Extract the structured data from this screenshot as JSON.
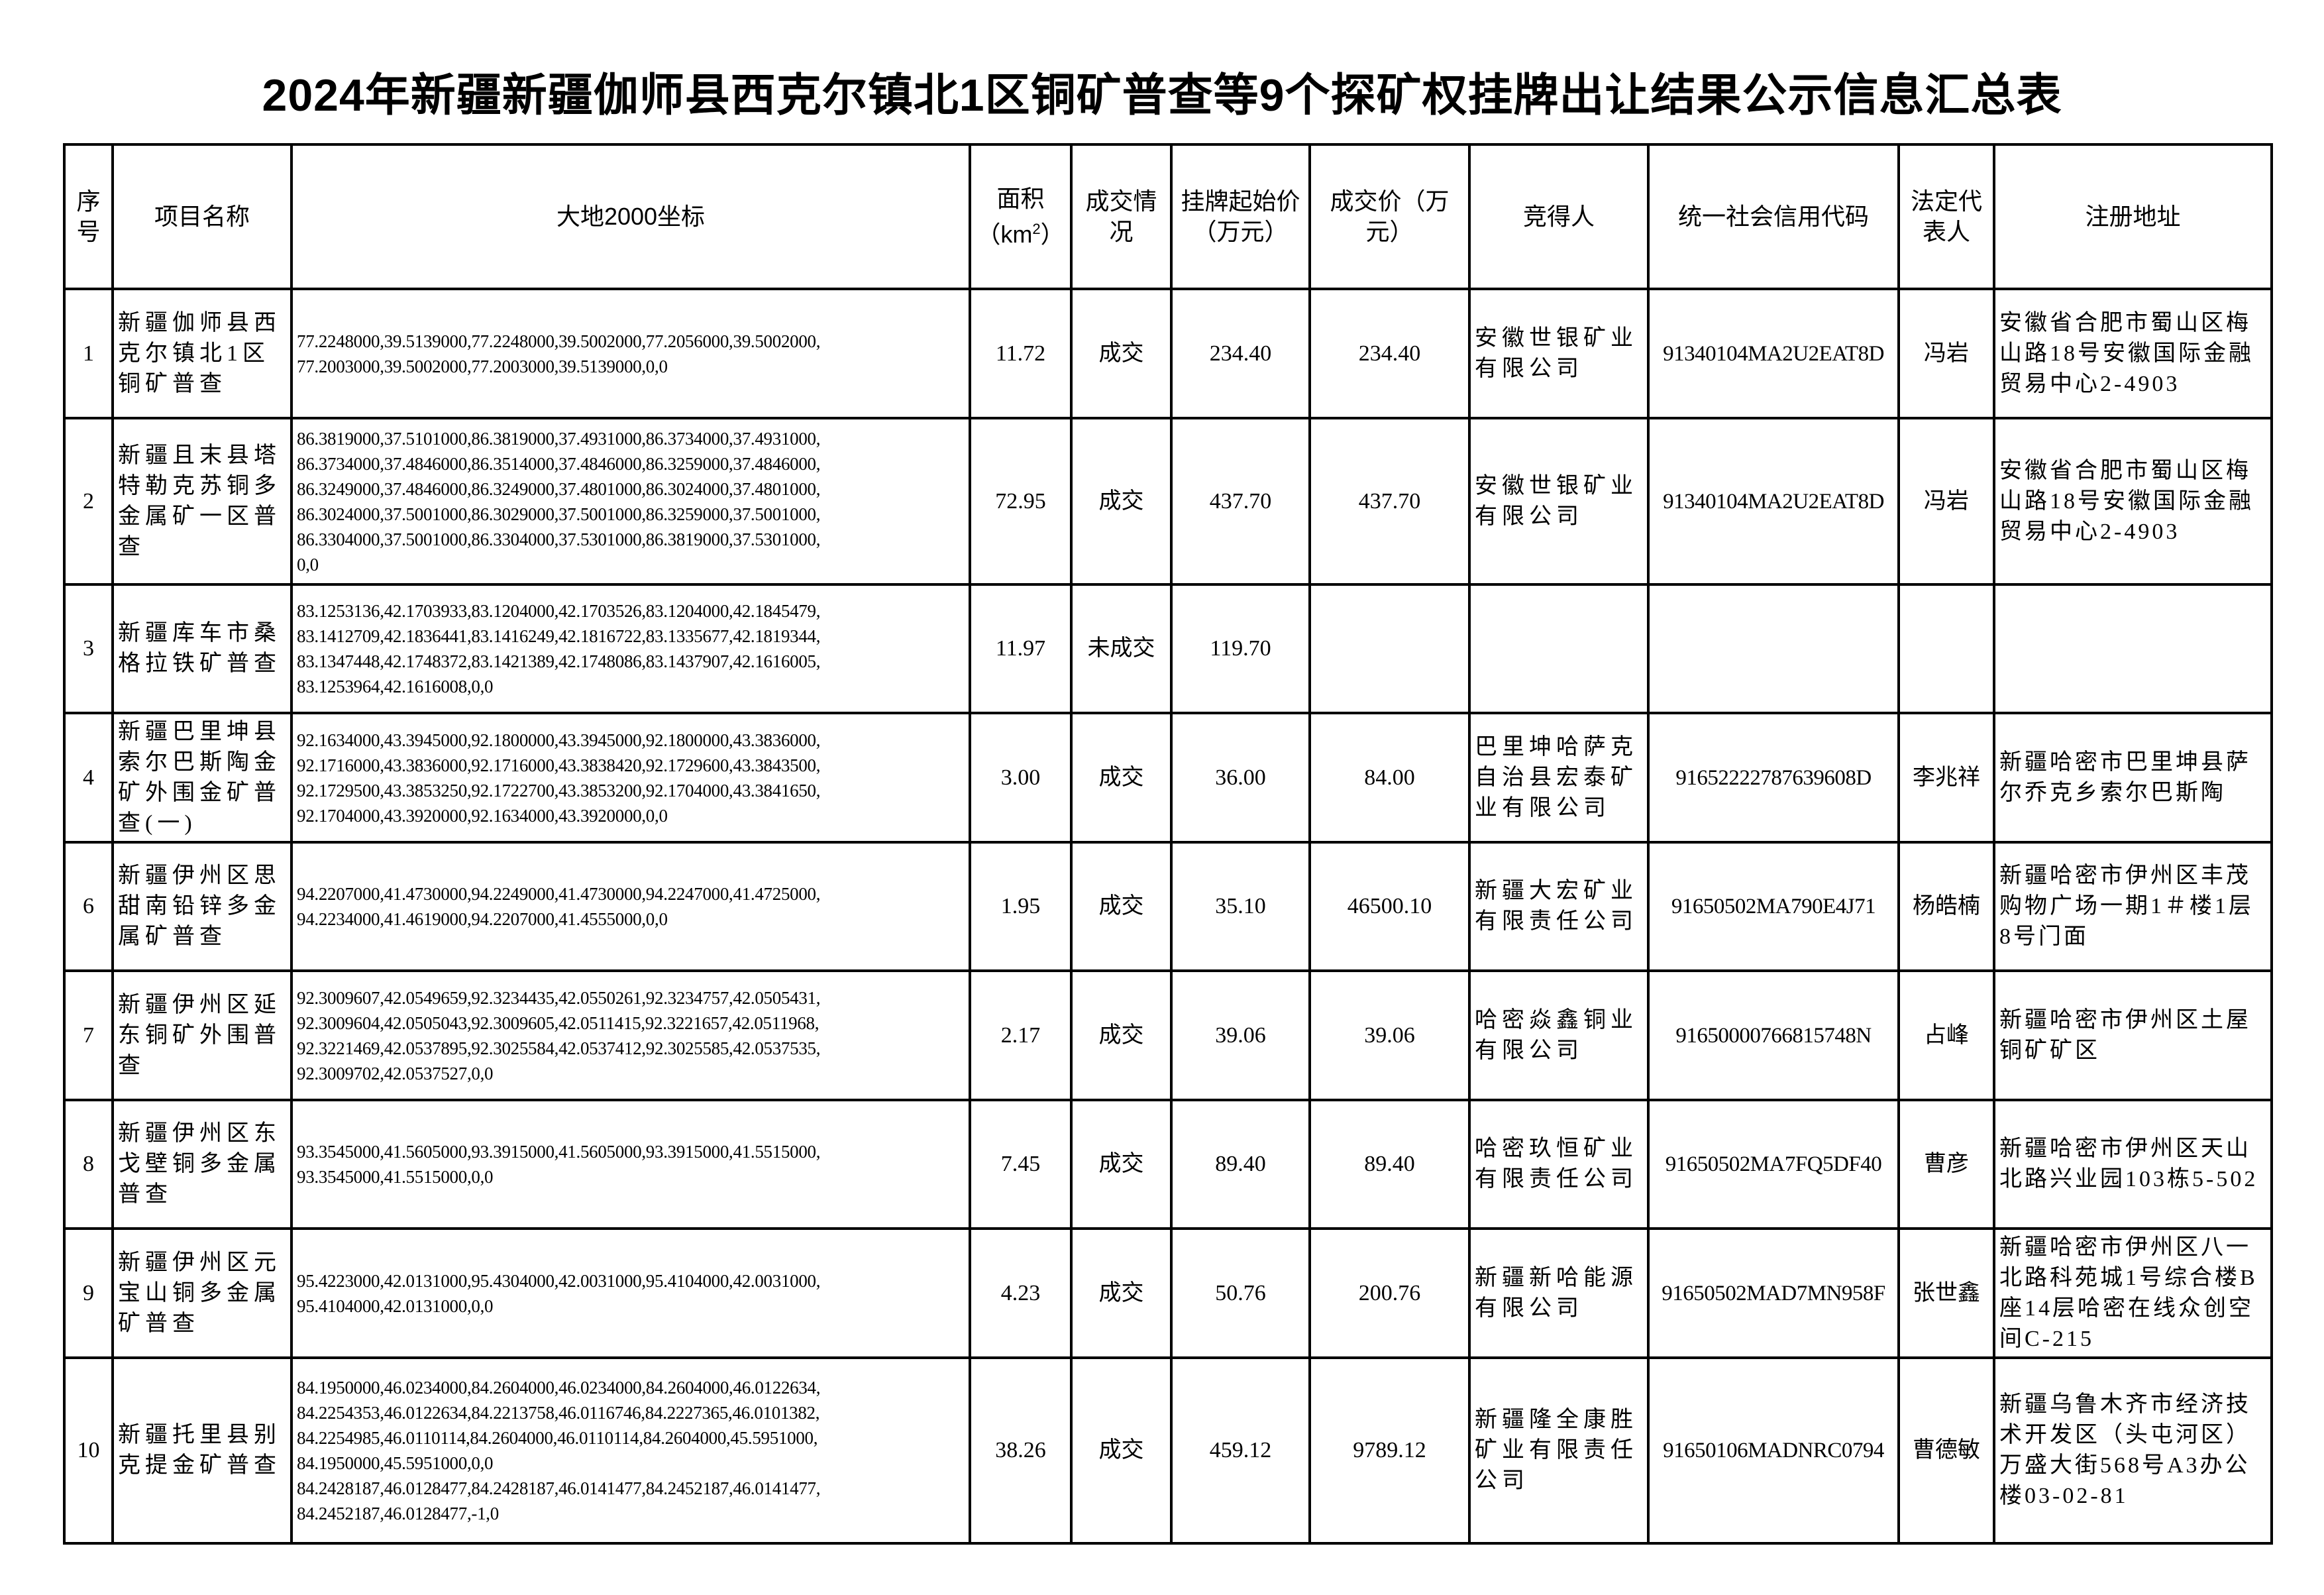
{
  "title": "2024年新疆新疆伽师县西克尔镇北1区铜矿普查等9个探矿权挂牌出让结果公示信息汇总表",
  "headers": {
    "seq": "序号",
    "name": "项目名称",
    "coords": "大地2000坐标",
    "area": "面积（km",
    "area_sup": "2",
    "area_end": "）",
    "status": "成交情况",
    "start_price": "挂牌起始价（万元）",
    "deal_price": "成交价（万元）",
    "winner": "竞得人",
    "credit_code": "统一社会信用代码",
    "legal_rep": "法定代表人",
    "address": "注册地址"
  },
  "rows": [
    {
      "seq": "1",
      "name": "新疆伽师县西克尔镇北1区铜矿普查",
      "coords": "77.2248000,39.5139000,77.2248000,39.5002000,77.2056000,39.5002000,\n77.2003000,39.5002000,77.2003000,39.5139000,0,0",
      "area": "11.72",
      "status": "成交",
      "start_price": "234.40",
      "deal_price": "234.40",
      "winner": "安徽世银矿业有限公司",
      "credit_code": "91340104MA2U2EAT8D",
      "legal_rep": "冯岩",
      "address": "安徽省合肥市蜀山区梅山路18号安徽国际金融贸易中心2-4903"
    },
    {
      "seq": "2",
      "name": "新疆且末县塔特勒克苏铜多金属矿一区普查",
      "coords": "86.3819000,37.5101000,86.3819000,37.4931000,86.3734000,37.4931000,\n86.3734000,37.4846000,86.3514000,37.4846000,86.3259000,37.4846000,\n86.3249000,37.4846000,86.3249000,37.4801000,86.3024000,37.4801000,\n86.3024000,37.5001000,86.3029000,37.5001000,86.3259000,37.5001000,\n86.3304000,37.5001000,86.3304000,37.5301000,86.3819000,37.5301000,\n0,0",
      "area": "72.95",
      "status": "成交",
      "start_price": "437.70",
      "deal_price": "437.70",
      "winner": "安徽世银矿业有限公司",
      "credit_code": "91340104MA2U2EAT8D",
      "legal_rep": "冯岩",
      "address": "安徽省合肥市蜀山区梅山路18号安徽国际金融贸易中心2-4903"
    },
    {
      "seq": "3",
      "name": "新疆库车市桑格拉铁矿普查",
      "coords": "83.1253136,42.1703933,83.1204000,42.1703526,83.1204000,42.1845479,\n83.1412709,42.1836441,83.1416249,42.1816722,83.1335677,42.1819344,\n83.1347448,42.1748372,83.1421389,42.1748086,83.1437907,42.1616005,\n83.1253964,42.1616008,0,0",
      "area": "11.97",
      "status": "未成交",
      "start_price": "119.70",
      "deal_price": "",
      "winner": "",
      "credit_code": "",
      "legal_rep": "",
      "address": ""
    },
    {
      "seq": "4",
      "name": "新疆巴里坤县索尔巴斯陶金矿外围金矿普查(一)",
      "coords": "92.1634000,43.3945000,92.1800000,43.3945000,92.1800000,43.3836000,\n92.1716000,43.3836000,92.1716000,43.3838420,92.1729600,43.3843500,\n92.1729500,43.3853250,92.1722700,43.3853200,92.1704000,43.3841650,\n92.1704000,43.3920000,92.1634000,43.3920000,0,0",
      "area": "3.00",
      "status": "成交",
      "start_price": "36.00",
      "deal_price": "84.00",
      "winner": "巴里坤哈萨克自治县宏泰矿业有限公司",
      "credit_code": "91652222787639608D",
      "legal_rep": "李兆祥",
      "address": "新疆哈密市巴里坤县萨尔乔克乡索尔巴斯陶"
    },
    {
      "seq": "6",
      "name": "新疆伊州区思甜南铅锌多金属矿普查",
      "coords": "94.2207000,41.4730000,94.2249000,41.4730000,94.2247000,41.4725000,\n94.2234000,41.4619000,94.2207000,41.4555000,0,0",
      "area": "1.95",
      "status": "成交",
      "start_price": "35.10",
      "deal_price": "46500.10",
      "winner": "新疆大宏矿业有限责任公司",
      "credit_code": "91650502MA790E4J71",
      "legal_rep": "杨皓楠",
      "address": "新疆哈密市伊州区丰茂购物广场一期1＃楼1层8号门面"
    },
    {
      "seq": "7",
      "name": "新疆伊州区延东铜矿外围普查",
      "coords": "92.3009607,42.0549659,92.3234435,42.0550261,92.3234757,42.0505431,\n92.3009604,42.0505043,92.3009605,42.0511415,92.3221657,42.0511968,\n92.3221469,42.0537895,92.3025584,42.0537412,92.3025585,42.0537535,\n92.3009702,42.0537527,0,0",
      "area": "2.17",
      "status": "成交",
      "start_price": "39.06",
      "deal_price": "39.06",
      "winner": "哈密焱鑫铜业有限公司",
      "credit_code": "9165000076681574​8N",
      "legal_rep": "占峰",
      "address": "新疆哈密市伊州区土屋铜矿矿区"
    },
    {
      "seq": "8",
      "name": "新疆伊州区东戈壁铜多金属普查",
      "coords": "93.3545000,41.5605000,93.3915000,41.5605000,93.3915000,41.5515000,\n93.3545000,41.5515000,0,0",
      "area": "7.45",
      "status": "成交",
      "start_price": "89.40",
      "deal_price": "89.40",
      "winner": "哈密玖恒矿业有限责任公司",
      "credit_code": "91650502MA7FQ5DF40",
      "legal_rep": "曹彦",
      "address": "新疆哈密市伊州区天山北路兴业园103栋5-502"
    },
    {
      "seq": "9",
      "name": "新疆伊州区元宝山铜多金属矿普查",
      "coords": "95.4223000,42.0131000,95.4304000,42.0031000,95.4104000,42.0031000,\n95.4104000,42.0131000,0,0",
      "area": "4.23",
      "status": "成交",
      "start_price": "50.76",
      "deal_price": "200.76",
      "winner": "新疆新哈能源有限公司",
      "credit_code": "91650502MAD7MN958F",
      "legal_rep": "张世鑫",
      "address": "新疆哈密市伊州区八一北路科苑城1号综合楼B座14层哈密在线众创空间C-215"
    },
    {
      "seq": "10",
      "name": "新疆托里县别克提金矿普查",
      "coords": "84.1950000,46.0234000,84.2604000,46.0234000,84.2604000,46.0122634,\n84.2254353,46.0122634,84.2213758,46.0116746,84.2227365,46.0101382,\n84.2254985,46.0110114,84.2604000,46.0110114,84.2604000,45.5951000,\n84.1950000,45.5951000,0,0\n84.2428187,46.0128477,84.2428187,46.0141477,84.2452187,46.0141477,\n84.2452187,46.0128477,-1,0",
      "area": "38.26",
      "status": "成交",
      "start_price": "459.12",
      "deal_price": "9789.12",
      "winner": "新疆隆全康胜矿业有限责任公司",
      "credit_code": "91650106MADNRC0794",
      "legal_rep": "曹德敏",
      "address": "新疆乌鲁木齐市经济技术开发区（头屯河区）万盛大街568号A3办公楼03-02-81"
    }
  ]
}
